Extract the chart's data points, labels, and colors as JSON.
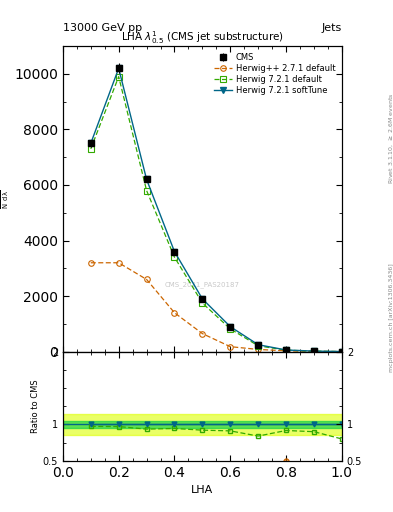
{
  "title": "LHA $\\lambda^{1}_{0.5}$ (CMS jet substructure)",
  "header_left": "13000 GeV pp",
  "header_right": "Jets",
  "xlabel": "LHA",
  "right_label_top": "Rivet 3.1.10, $\\geq$ 2.6M events",
  "right_label_bottom": "mcplots.cern.ch [arXiv:1306.3436]",
  "watermark": "CMS_2021_PAS20187",
  "xlim": [
    0,
    1
  ],
  "ylim_main": [
    0,
    11000
  ],
  "ylim_ratio": [
    0.5,
    2.0
  ],
  "yticks_main": [
    0,
    2000,
    4000,
    6000,
    8000,
    10000
  ],
  "cms_x": [
    0.1,
    0.2,
    0.3,
    0.4,
    0.5,
    0.6,
    0.7,
    0.8,
    0.9,
    1.0
  ],
  "cms_y": [
    7500,
    10200,
    6200,
    3600,
    1900,
    900,
    250,
    60,
    20,
    5
  ],
  "cms_yerr": [
    120,
    180,
    100,
    70,
    45,
    28,
    14,
    8,
    5,
    3
  ],
  "hpp271_x": [
    0.1,
    0.2,
    0.3,
    0.4,
    0.5,
    0.6,
    0.7,
    0.8,
    0.9,
    1.0
  ],
  "hpp271_y": [
    3200,
    3200,
    2600,
    1400,
    650,
    180,
    80,
    30,
    8,
    2
  ],
  "h721d_x": [
    0.1,
    0.2,
    0.3,
    0.4,
    0.5,
    0.6,
    0.7,
    0.8,
    0.9,
    1.0
  ],
  "h721d_y": [
    7300,
    9900,
    5800,
    3400,
    1750,
    820,
    210,
    55,
    18,
    4
  ],
  "h721s_x": [
    0.1,
    0.2,
    0.3,
    0.4,
    0.5,
    0.6,
    0.7,
    0.8,
    0.9,
    1.0
  ],
  "h721s_y": [
    7500,
    10200,
    6200,
    3600,
    1900,
    900,
    250,
    60,
    20,
    5
  ],
  "cms_color": "#000000",
  "hpp271_color": "#cc6600",
  "h721d_color": "#33aa00",
  "h721s_color": "#006688",
  "ratio_green_band": 0.05,
  "ratio_yellow_band": 0.15
}
